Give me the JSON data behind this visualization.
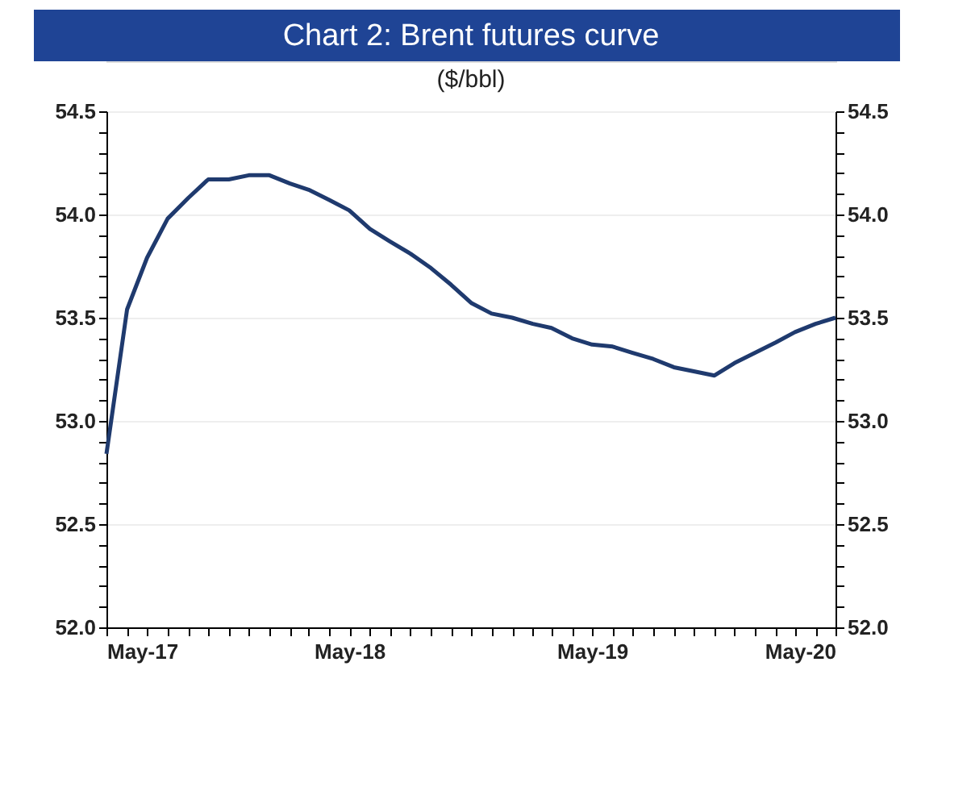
{
  "chart_data": {
    "type": "line",
    "title": "Chart 2: Brent futures curve",
    "subtitle": "($/bbl)",
    "x": [
      "2017-05",
      "2017-06",
      "2017-07",
      "2017-08",
      "2017-09",
      "2017-10",
      "2017-11",
      "2017-12",
      "2018-01",
      "2018-02",
      "2018-03",
      "2018-04",
      "2018-05",
      "2018-06",
      "2018-07",
      "2018-08",
      "2018-09",
      "2018-10",
      "2018-11",
      "2018-12",
      "2019-01",
      "2019-02",
      "2019-03",
      "2019-04",
      "2019-05",
      "2019-06",
      "2019-07",
      "2019-08",
      "2019-09",
      "2019-10",
      "2019-11",
      "2019-12",
      "2020-01",
      "2020-02",
      "2020-03",
      "2020-04",
      "2020-05"
    ],
    "series": [
      {
        "color": "#1f3a6e",
        "values": [
          52.84,
          53.54,
          53.79,
          53.98,
          54.08,
          54.17,
          54.17,
          54.19,
          54.19,
          54.15,
          54.12,
          54.07,
          54.02,
          53.93,
          53.87,
          53.81,
          53.74,
          53.66,
          53.57,
          53.52,
          53.5,
          53.47,
          53.45,
          53.4,
          53.37,
          53.36,
          53.33,
          53.3,
          53.26,
          53.24,
          53.22,
          53.28,
          53.33,
          53.38,
          53.43,
          53.47,
          53.5
        ]
      }
    ],
    "xlim": [
      "2017-05",
      "2020-05"
    ],
    "xticks": [
      {
        "value": "2017-05",
        "label": "May-17"
      },
      {
        "value": "2017-06",
        "label": null
      },
      {
        "value": "2017-07",
        "label": null
      },
      {
        "value": "2017-08",
        "label": null
      },
      {
        "value": "2017-09",
        "label": null
      },
      {
        "value": "2017-10",
        "label": null
      },
      {
        "value": "2017-11",
        "label": null
      },
      {
        "value": "2017-12",
        "label": null
      },
      {
        "value": "2018-01",
        "label": null
      },
      {
        "value": "2018-02",
        "label": null
      },
      {
        "value": "2018-03",
        "label": null
      },
      {
        "value": "2018-04",
        "label": null
      },
      {
        "value": "2018-05",
        "label": "May-18"
      },
      {
        "value": "2018-06",
        "label": null
      },
      {
        "value": "2018-07",
        "label": null
      },
      {
        "value": "2018-08",
        "label": null
      },
      {
        "value": "2018-09",
        "label": null
      },
      {
        "value": "2018-10",
        "label": null
      },
      {
        "value": "2018-11",
        "label": null
      },
      {
        "value": "2018-12",
        "label": null
      },
      {
        "value": "2019-01",
        "label": null
      },
      {
        "value": "2019-02",
        "label": null
      },
      {
        "value": "2019-03",
        "label": null
      },
      {
        "value": "2019-04",
        "label": null
      },
      {
        "value": "2019-05",
        "label": "May-19"
      },
      {
        "value": "2019-06",
        "label": null
      },
      {
        "value": "2019-07",
        "label": null
      },
      {
        "value": "2019-08",
        "label": null
      },
      {
        "value": "2019-09",
        "label": null
      },
      {
        "value": "2019-10",
        "label": null
      },
      {
        "value": "2019-11",
        "label": null
      },
      {
        "value": "2019-12",
        "label": null
      },
      {
        "value": "2020-01",
        "label": null
      },
      {
        "value": "2020-02",
        "label": null
      },
      {
        "value": "2020-03",
        "label": null
      },
      {
        "value": "2020-04",
        "label": null
      },
      {
        "value": "2020-05",
        "label": "May-20"
      }
    ],
    "ylim": [
      52.0,
      54.5
    ],
    "yticks": [
      {
        "value": 52.0,
        "label": "52.0"
      },
      {
        "value": 52.1,
        "label": null
      },
      {
        "value": 52.2,
        "label": null
      },
      {
        "value": 52.3,
        "label": null
      },
      {
        "value": 52.4,
        "label": null
      },
      {
        "value": 52.5,
        "label": "52.5"
      },
      {
        "value": 52.6,
        "label": null
      },
      {
        "value": 52.7,
        "label": null
      },
      {
        "value": 52.8,
        "label": null
      },
      {
        "value": 52.9,
        "label": null
      },
      {
        "value": 53.0,
        "label": "53.0"
      },
      {
        "value": 53.1,
        "label": null
      },
      {
        "value": 53.2,
        "label": null
      },
      {
        "value": 53.3,
        "label": null
      },
      {
        "value": 53.4,
        "label": null
      },
      {
        "value": 53.5,
        "label": "53.5"
      },
      {
        "value": 53.6,
        "label": null
      },
      {
        "value": 53.7,
        "label": null
      },
      {
        "value": 53.8,
        "label": null
      },
      {
        "value": 53.9,
        "label": null
      },
      {
        "value": 54.0,
        "label": "54.0"
      },
      {
        "value": 54.1,
        "label": null
      },
      {
        "value": 54.2,
        "label": null
      },
      {
        "value": 54.3,
        "label": null
      },
      {
        "value": 54.4,
        "label": null
      },
      {
        "value": 54.5,
        "label": "54.5"
      }
    ],
    "y2lim": [
      52.0,
      54.5
    ],
    "y2ticks": [
      {
        "value": 52.0,
        "label": "52.0"
      },
      {
        "value": 52.1,
        "label": null
      },
      {
        "value": 52.2,
        "label": null
      },
      {
        "value": 52.3,
        "label": null
      },
      {
        "value": 52.4,
        "label": null
      },
      {
        "value": 52.5,
        "label": "52.5"
      },
      {
        "value": 52.6,
        "label": null
      },
      {
        "value": 52.7,
        "label": null
      },
      {
        "value": 52.8,
        "label": null
      },
      {
        "value": 52.9,
        "label": null
      },
      {
        "value": 53.0,
        "label": "53.0"
      },
      {
        "value": 53.1,
        "label": null
      },
      {
        "value": 53.2,
        "label": null
      },
      {
        "value": 53.3,
        "label": null
      },
      {
        "value": 53.4,
        "label": null
      },
      {
        "value": 53.5,
        "label": "53.5"
      },
      {
        "value": 53.6,
        "label": null
      },
      {
        "value": 53.7,
        "label": null
      },
      {
        "value": 53.8,
        "label": null
      },
      {
        "value": 53.9,
        "label": null
      },
      {
        "value": 54.0,
        "label": "54.0"
      },
      {
        "value": 54.1,
        "label": null
      },
      {
        "value": 54.2,
        "label": null
      },
      {
        "value": 54.3,
        "label": null
      },
      {
        "value": 54.4,
        "label": null
      },
      {
        "value": 54.5,
        "label": "54.5"
      }
    ],
    "grid": "y",
    "marker": "none",
    "line_style": "solid"
  }
}
